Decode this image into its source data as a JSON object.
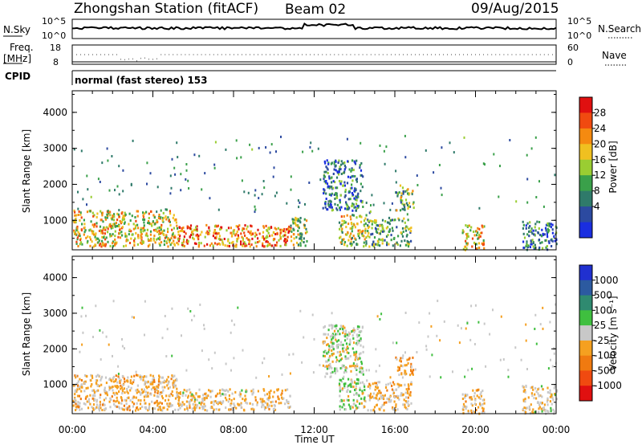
{
  "header": {
    "station": "Zhongshan Station (fitACF)",
    "beam": "Beam 02",
    "date": "09/Aug/2015"
  },
  "strip": {
    "nsky_label": "N.Sky",
    "nsky_ticks": [
      "10^5",
      "10^0"
    ],
    "nsearch_label": "N.Search",
    "nsearch_ticks": [
      "10^5",
      "10^0"
    ],
    "freq_label": "Freq.",
    "freq_unit": "[MHz]",
    "freq_ticks": [
      "18",
      "8"
    ],
    "nave_label": "Nave",
    "nave_ticks": [
      "60",
      "0"
    ],
    "cpid_label": "CPID",
    "cpid_text": "normal (fast stereo) 153"
  },
  "panels": {
    "ylabel": "Slant Range [km]",
    "yticks": [
      "4000",
      "3000",
      "2000",
      "1000"
    ],
    "xticks": [
      "00:00",
      "04:00",
      "08:00",
      "12:00",
      "16:00",
      "20:00",
      "00:00"
    ],
    "xlabel": "Time UT"
  },
  "power_scale": {
    "label": "Power [dB]",
    "ticks": [
      "28",
      "24",
      "20",
      "16",
      "12",
      "8",
      "4"
    ],
    "colors": [
      "#e01010",
      "#f04a10",
      "#f58a10",
      "#f0c020",
      "#9acd32",
      "#3aa04a",
      "#2f7a6a",
      "#2c4aa0",
      "#1a2ee0"
    ]
  },
  "velocity_scale": {
    "label": "Velocity [m s⁻¹]",
    "ticks": [
      "1000",
      "500",
      "100",
      "25",
      "-25",
      "-100",
      "-500",
      "-1000"
    ],
    "colors": [
      "#2030d0",
      "#2c5aa0",
      "#2f8a70",
      "#3fbf3f",
      "#c8c8c8",
      "#f5a020",
      "#f07a10",
      "#f04a10",
      "#e01010"
    ]
  },
  "chart_data": [
    {
      "type": "heatmap",
      "title": "Power",
      "xlabel": "Time UT",
      "ylabel": "Slant Range [km]",
      "xlim": [
        0,
        24
      ],
      "ylim": [
        180,
        4600
      ],
      "colorbar_label": "Power [dB]",
      "clim": [
        0,
        30
      ],
      "blobs": [
        {
          "t0": 0.0,
          "t1": 5.2,
          "r0": 300,
          "r1": 1300,
          "value": 18
        },
        {
          "t0": 5.2,
          "t1": 10.8,
          "r0": 300,
          "r1": 900,
          "value": 22
        },
        {
          "t0": 10.8,
          "t1": 11.6,
          "r0": 300,
          "r1": 1100,
          "value": 14
        },
        {
          "t0": 12.4,
          "t1": 14.4,
          "r0": 1300,
          "r1": 2700,
          "value": 8
        },
        {
          "t0": 13.2,
          "t1": 14.6,
          "r0": 300,
          "r1": 1200,
          "value": 16
        },
        {
          "t0": 16.0,
          "t1": 16.9,
          "r0": 1300,
          "r1": 2000,
          "value": 14
        },
        {
          "t0": 14.6,
          "t1": 16.8,
          "r0": 300,
          "r1": 1100,
          "value": 12
        },
        {
          "t0": 19.3,
          "t1": 20.4,
          "r0": 200,
          "r1": 900,
          "value": 18
        },
        {
          "t0": 22.3,
          "t1": 24.0,
          "r0": 200,
          "r1": 1000,
          "value": 8
        }
      ]
    },
    {
      "type": "heatmap",
      "title": "Velocity",
      "xlabel": "Time UT",
      "ylabel": "Slant Range [km]",
      "xlim": [
        0,
        24
      ],
      "ylim": [
        180,
        4600
      ],
      "colorbar_label": "Velocity [m s⁻¹]",
      "clim": [
        -1000,
        1000
      ],
      "blobs": [
        {
          "t0": 0.0,
          "t1": 5.2,
          "r0": 300,
          "r1": 1300,
          "value": -150
        },
        {
          "t0": 5.2,
          "t1": 10.8,
          "r0": 300,
          "r1": 900,
          "value": -120
        },
        {
          "t0": 12.4,
          "t1": 14.4,
          "r0": 1300,
          "r1": 2700,
          "value": 0
        },
        {
          "t0": 13.2,
          "t1": 14.6,
          "r0": 300,
          "r1": 1200,
          "value": 60
        },
        {
          "t0": 16.0,
          "t1": 16.9,
          "r0": 1300,
          "r1": 1800,
          "value": -300
        },
        {
          "t0": 14.6,
          "t1": 16.8,
          "r0": 300,
          "r1": 1100,
          "value": -150
        },
        {
          "t0": 19.3,
          "t1": 20.4,
          "r0": 200,
          "r1": 900,
          "value": -150
        },
        {
          "t0": 22.3,
          "t1": 24.0,
          "r0": 200,
          "r1": 1000,
          "value": -80
        }
      ]
    }
  ]
}
